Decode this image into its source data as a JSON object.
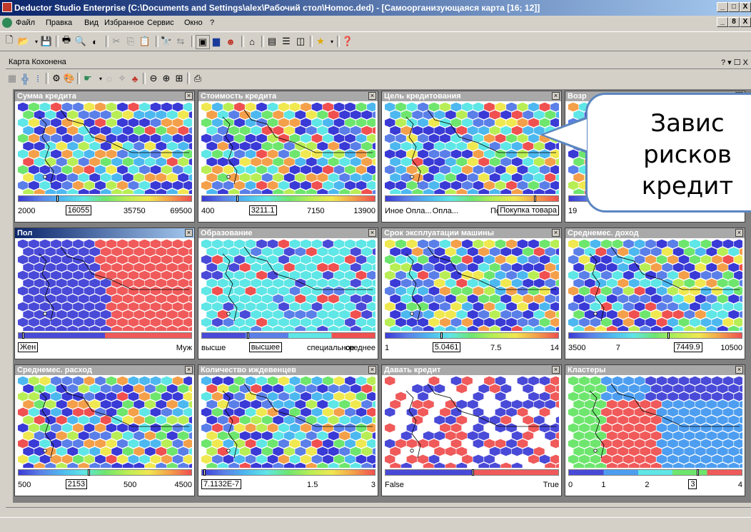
{
  "window": {
    "title": "Deductor Studio Enterprise (C:\\Documents and Settings\\alex\\Рабочий стол\\Нomoc.ded) - [Самоорганизующаяся карта [16; 12]]",
    "controls": [
      "_",
      "□",
      "X"
    ],
    "mdi_controls": [
      "_",
      "8",
      "X"
    ]
  },
  "menu": [
    "Файл",
    "Правка",
    "Вид",
    "Избранное",
    "Сервис",
    "Окно",
    "?"
  ],
  "document": {
    "title": "Карта Кохонена",
    "controls": "? ▾ ☐ X"
  },
  "panels": [
    {
      "title": "Сумма кредита",
      "active": false,
      "scale": [
        "2000",
        "16055",
        "35750",
        "69500"
      ],
      "boxed": 1,
      "marker": 0.22,
      "palette": "rainbow"
    },
    {
      "title": "Стоимость кредита",
      "active": false,
      "scale": [
        "400",
        "3211.1",
        "7150",
        "13900"
      ],
      "boxed": 1,
      "marker": 0.2,
      "palette": "rainbow"
    },
    {
      "title": "Цель кредитования",
      "active": false,
      "scale": [
        "Иное Опла...",
        "Опла...",
        "Пок",
        "Покупка товара"
      ],
      "boxed": 3,
      "marker": 0.86,
      "palette": "rainbow"
    },
    {
      "title": "Возр",
      "active": false,
      "scale": [
        "19",
        "",
        "",
        ""
      ],
      "boxed": -1,
      "marker": 0.3,
      "palette": "rainbow"
    },
    {
      "title": "Пол",
      "active": true,
      "scale": [
        "Жен",
        "",
        "",
        "Муж"
      ],
      "boxed": 0,
      "marker": 0.02,
      "palette": "binary"
    },
    {
      "title": "Образование",
      "active": false,
      "scale": [
        "высше",
        "высшее",
        "специальное",
        "среднее"
      ],
      "boxed": 1,
      "marker": 0.26,
      "palette": "four"
    },
    {
      "title": "Срок эксплуатации машины",
      "active": false,
      "scale": [
        "1",
        "5.0461",
        "7.5",
        "14"
      ],
      "boxed": 1,
      "marker": 0.32,
      "palette": "rainbow"
    },
    {
      "title": "Среднемес. доход",
      "active": false,
      "scale": [
        "3500",
        "7",
        "7449.9",
        "10500"
      ],
      "boxed": 2,
      "marker": 0.57,
      "palette": "rainbow"
    },
    {
      "title": "Среднемес. расход",
      "active": false,
      "scale": [
        "500",
        "2153",
        "500",
        "4500"
      ],
      "boxed": 1,
      "marker": 0.4,
      "palette": "rainbow"
    },
    {
      "title": "Количество иждевенцев",
      "active": false,
      "scale": [
        "7.1132E-7",
        "",
        "1.5",
        "3"
      ],
      "boxed": 0,
      "marker": 0.01,
      "palette": "rainbow"
    },
    {
      "title": "Давать кредит",
      "active": false,
      "scale": [
        "False",
        "",
        "",
        "True"
      ],
      "boxed": -1,
      "marker": 0.5,
      "palette": "binary2"
    },
    {
      "title": "Кластеры",
      "active": false,
      "scale": [
        "0",
        "1",
        "2",
        "3",
        "4"
      ],
      "boxed": 3,
      "marker": 0.74,
      "palette": "clusters"
    }
  ],
  "callout": {
    "lines": [
      "Завис",
      "рисков ",
      "кредит"
    ]
  }
}
